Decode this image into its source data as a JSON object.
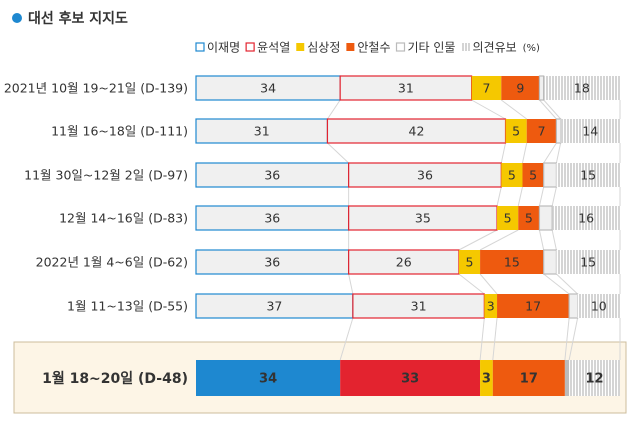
{
  "chart_data": {
    "type": "stacked-bar-100",
    "title": "대선 후보 지지도",
    "unit": "(%)",
    "categories": [
      "2021년 10월 19~21일 (D-139)",
      "11월 16~18일 (D-111)",
      "11월 30일~12월 2일 (D-97)",
      "12월 14~16일 (D-83)",
      "2022년 1월 4~6일 (D-62)",
      "1월 11~13일 (D-55)",
      "1월 18~20일 (D-48)"
    ],
    "highlight_row": 6,
    "series": [
      {
        "name": "이재명",
        "color": "#1e88d0",
        "style": "outline",
        "values": [
          34,
          31,
          36,
          36,
          36,
          37,
          34
        ]
      },
      {
        "name": "윤석열",
        "color": "#e3232f",
        "style": "outline",
        "values": [
          31,
          42,
          36,
          35,
          26,
          31,
          33
        ]
      },
      {
        "name": "심상정",
        "color": "#f5c800",
        "style": "filled",
        "values": [
          7,
          5,
          5,
          5,
          5,
          3,
          3
        ]
      },
      {
        "name": "안철수",
        "color": "#ee5a0f",
        "style": "filled",
        "values": [
          9,
          7,
          5,
          5,
          15,
          17,
          17
        ]
      },
      {
        "name": "기타 인물",
        "color": "#bbbbbb",
        "style": "outline",
        "values": [
          1,
          1,
          3,
          3,
          3,
          2,
          1
        ],
        "value_labels": [
          null,
          null,
          null,
          null,
          null,
          null,
          null
        ]
      },
      {
        "name": "의견유보",
        "color": "#999999",
        "style": "hatched",
        "values": [
          18,
          14,
          15,
          16,
          15,
          10,
          12
        ]
      }
    ],
    "xlim": [
      0,
      100
    ]
  }
}
